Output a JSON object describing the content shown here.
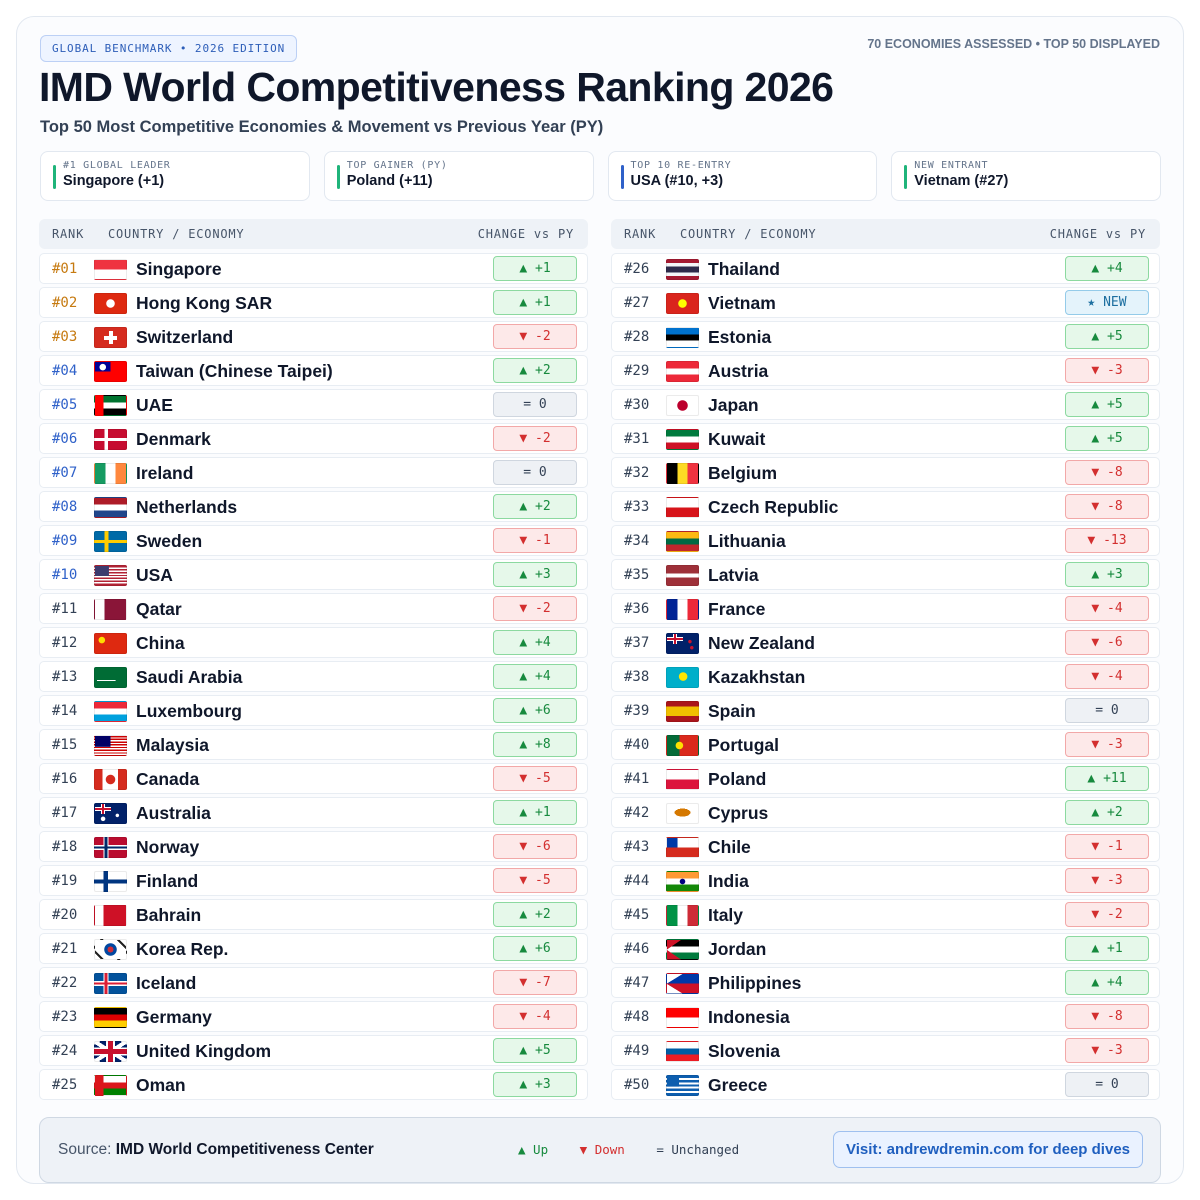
{
  "header": {
    "badge": "GLOBAL BENCHMARK • 2026 EDITION",
    "meta": "70 ECONOMIES ASSESSED • TOP 50 DISPLAYED",
    "title": "IMD World Competitiveness Ranking 2026",
    "subtitle": "Top 50 Most Competitive Economies & Movement vs Previous Year (PY)"
  },
  "cards": [
    {
      "label": "#1 GLOBAL LEADER",
      "value": "Singapore (+1)",
      "accent": "#1fb47a"
    },
    {
      "label": "TOP GAINER (PY)",
      "value": "Poland (+11)",
      "accent": "#1fb47a"
    },
    {
      "label": "TOP 10 RE-ENTRY",
      "value": "USA (#10, +3)",
      "accent": "#2f61c9"
    },
    {
      "label": "NEW ENTRANT",
      "value": "Vietnam (#27)",
      "accent": "#1fb47a"
    }
  ],
  "columns": {
    "rank": "RANK",
    "country": "COUNTRY / ECONOMY",
    "change": "CHANGE vs PY"
  },
  "colors": {
    "top3": "#c67a10",
    "top10": "#2f61c9",
    "up": "#178a3e",
    "down": "#d32f2f",
    "flat": "#334155",
    "new": "#1d6fa0"
  },
  "rankings": [
    {
      "rank": "#01",
      "country": "Singapore",
      "change": "▲ +1",
      "dir": "up",
      "flag": "sg"
    },
    {
      "rank": "#02",
      "country": "Hong Kong SAR",
      "change": "▲ +1",
      "dir": "up",
      "flag": "hk"
    },
    {
      "rank": "#03",
      "country": "Switzerland",
      "change": "▼ -2",
      "dir": "down",
      "flag": "ch"
    },
    {
      "rank": "#04",
      "country": "Taiwan (Chinese Taipei)",
      "change": "▲ +2",
      "dir": "up",
      "flag": "tw"
    },
    {
      "rank": "#05",
      "country": "UAE",
      "change": "= 0",
      "dir": "flat",
      "flag": "ae"
    },
    {
      "rank": "#06",
      "country": "Denmark",
      "change": "▼ -2",
      "dir": "down",
      "flag": "dk"
    },
    {
      "rank": "#07",
      "country": "Ireland",
      "change": "= 0",
      "dir": "flat",
      "flag": "ie"
    },
    {
      "rank": "#08",
      "country": "Netherlands",
      "change": "▲ +2",
      "dir": "up",
      "flag": "nl"
    },
    {
      "rank": "#09",
      "country": "Sweden",
      "change": "▼ -1",
      "dir": "down",
      "flag": "se"
    },
    {
      "rank": "#10",
      "country": "USA",
      "change": "▲ +3",
      "dir": "up",
      "flag": "us"
    },
    {
      "rank": "#11",
      "country": "Qatar",
      "change": "▼ -2",
      "dir": "down",
      "flag": "qa"
    },
    {
      "rank": "#12",
      "country": "China",
      "change": "▲ +4",
      "dir": "up",
      "flag": "cn"
    },
    {
      "rank": "#13",
      "country": "Saudi Arabia",
      "change": "▲ +4",
      "dir": "up",
      "flag": "sa"
    },
    {
      "rank": "#14",
      "country": "Luxembourg",
      "change": "▲ +6",
      "dir": "up",
      "flag": "lu"
    },
    {
      "rank": "#15",
      "country": "Malaysia",
      "change": "▲ +8",
      "dir": "up",
      "flag": "my"
    },
    {
      "rank": "#16",
      "country": "Canada",
      "change": "▼ -5",
      "dir": "down",
      "flag": "ca"
    },
    {
      "rank": "#17",
      "country": "Australia",
      "change": "▲ +1",
      "dir": "up",
      "flag": "au"
    },
    {
      "rank": "#18",
      "country": "Norway",
      "change": "▼ -6",
      "dir": "down",
      "flag": "no"
    },
    {
      "rank": "#19",
      "country": "Finland",
      "change": "▼ -5",
      "dir": "down",
      "flag": "fi"
    },
    {
      "rank": "#20",
      "country": "Bahrain",
      "change": "▲ +2",
      "dir": "up",
      "flag": "bh"
    },
    {
      "rank": "#21",
      "country": "Korea Rep.",
      "change": "▲ +6",
      "dir": "up",
      "flag": "kr"
    },
    {
      "rank": "#22",
      "country": "Iceland",
      "change": "▼ -7",
      "dir": "down",
      "flag": "is"
    },
    {
      "rank": "#23",
      "country": "Germany",
      "change": "▼ -4",
      "dir": "down",
      "flag": "de"
    },
    {
      "rank": "#24",
      "country": "United Kingdom",
      "change": "▲ +5",
      "dir": "up",
      "flag": "gb"
    },
    {
      "rank": "#25",
      "country": "Oman",
      "change": "▲ +3",
      "dir": "up",
      "flag": "om"
    },
    {
      "rank": "#26",
      "country": "Thailand",
      "change": "▲ +4",
      "dir": "up",
      "flag": "th"
    },
    {
      "rank": "#27",
      "country": "Vietnam",
      "change": "★ NEW",
      "dir": "new",
      "flag": "vn"
    },
    {
      "rank": "#28",
      "country": "Estonia",
      "change": "▲ +5",
      "dir": "up",
      "flag": "ee"
    },
    {
      "rank": "#29",
      "country": "Austria",
      "change": "▼ -3",
      "dir": "down",
      "flag": "at"
    },
    {
      "rank": "#30",
      "country": "Japan",
      "change": "▲ +5",
      "dir": "up",
      "flag": "jp"
    },
    {
      "rank": "#31",
      "country": "Kuwait",
      "change": "▲ +5",
      "dir": "up",
      "flag": "kw"
    },
    {
      "rank": "#32",
      "country": "Belgium",
      "change": "▼ -8",
      "dir": "down",
      "flag": "be"
    },
    {
      "rank": "#33",
      "country": "Czech Republic",
      "change": "▼ -8",
      "dir": "down",
      "flag": "cz"
    },
    {
      "rank": "#34",
      "country": "Lithuania",
      "change": "▼ -13",
      "dir": "down",
      "flag": "lt"
    },
    {
      "rank": "#35",
      "country": "Latvia",
      "change": "▲ +3",
      "dir": "up",
      "flag": "lv"
    },
    {
      "rank": "#36",
      "country": "France",
      "change": "▼ -4",
      "dir": "down",
      "flag": "fr"
    },
    {
      "rank": "#37",
      "country": "New Zealand",
      "change": "▼ -6",
      "dir": "down",
      "flag": "nz"
    },
    {
      "rank": "#38",
      "country": "Kazakhstan",
      "change": "▼ -4",
      "dir": "down",
      "flag": "kz"
    },
    {
      "rank": "#39",
      "country": "Spain",
      "change": "= 0",
      "dir": "flat",
      "flag": "es"
    },
    {
      "rank": "#40",
      "country": "Portugal",
      "change": "▼ -3",
      "dir": "down",
      "flag": "pt"
    },
    {
      "rank": "#41",
      "country": "Poland",
      "change": "▲ +11",
      "dir": "up",
      "flag": "pl"
    },
    {
      "rank": "#42",
      "country": "Cyprus",
      "change": "▲ +2",
      "dir": "up",
      "flag": "cy"
    },
    {
      "rank": "#43",
      "country": "Chile",
      "change": "▼ -1",
      "dir": "down",
      "flag": "cl"
    },
    {
      "rank": "#44",
      "country": "India",
      "change": "▼ -3",
      "dir": "down",
      "flag": "in"
    },
    {
      "rank": "#45",
      "country": "Italy",
      "change": "▼ -2",
      "dir": "down",
      "flag": "it"
    },
    {
      "rank": "#46",
      "country": "Jordan",
      "change": "▲ +1",
      "dir": "up",
      "flag": "jo"
    },
    {
      "rank": "#47",
      "country": "Philippines",
      "change": "▲ +4",
      "dir": "up",
      "flag": "ph"
    },
    {
      "rank": "#48",
      "country": "Indonesia",
      "change": "▼ -8",
      "dir": "down",
      "flag": "id"
    },
    {
      "rank": "#49",
      "country": "Slovenia",
      "change": "▼ -3",
      "dir": "down",
      "flag": "si"
    },
    {
      "rank": "#50",
      "country": "Greece",
      "change": "= 0",
      "dir": "flat",
      "flag": "gr"
    }
  ],
  "footer": {
    "source_prefix": "Source: ",
    "source": "IMD World Competitiveness Center",
    "legend": [
      {
        "label": "▲ Up",
        "dir": "up"
      },
      {
        "label": "▼ Down",
        "dir": "down"
      },
      {
        "label": "= Unchanged",
        "dir": "flat"
      }
    ],
    "visit": "Visit: andrewdremin.com for deep dives"
  }
}
